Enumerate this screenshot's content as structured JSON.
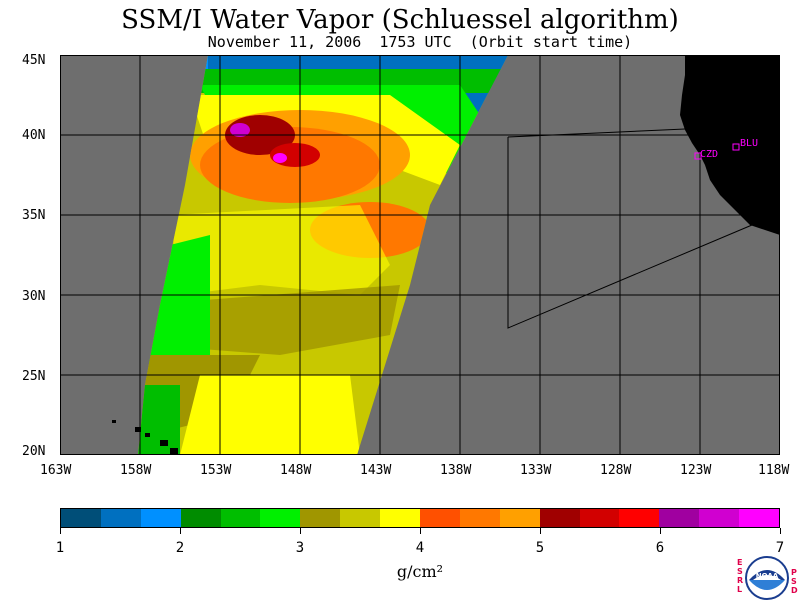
{
  "title": "SSM/I Water Vapor (Schluessel algorithm)",
  "subtitle": "November 11, 2006  1753 UTC  (Orbit start time)",
  "map": {
    "lat_labels": [
      "45N",
      "40N",
      "35N",
      "30N",
      "25N",
      "20N"
    ],
    "lon_labels": [
      "163W",
      "158W",
      "153W",
      "148W",
      "143W",
      "138W",
      "133W",
      "128W",
      "123W",
      "118W"
    ],
    "stations": [
      {
        "label": "CZD"
      },
      {
        "label": "BLU"
      }
    ],
    "land_color": "#000000",
    "ocean_color": "#6e6e6e"
  },
  "colorbar": {
    "colors": [
      "#004e78",
      "#0070c0",
      "#0090ff",
      "#008c00",
      "#00be00",
      "#00f000",
      "#a09600",
      "#c8c800",
      "#ffff00",
      "#ff5000",
      "#ff7800",
      "#ffa000",
      "#a00000",
      "#d20000",
      "#ff0000",
      "#a000a0",
      "#d000d0",
      "#ff00ff"
    ],
    "labels": [
      "1",
      "2",
      "3",
      "4",
      "5",
      "6",
      "7"
    ],
    "units": "g/cm²"
  },
  "logo": {
    "left_text": "ESRL",
    "right_text": "PSD",
    "center_text": "NOAA"
  }
}
